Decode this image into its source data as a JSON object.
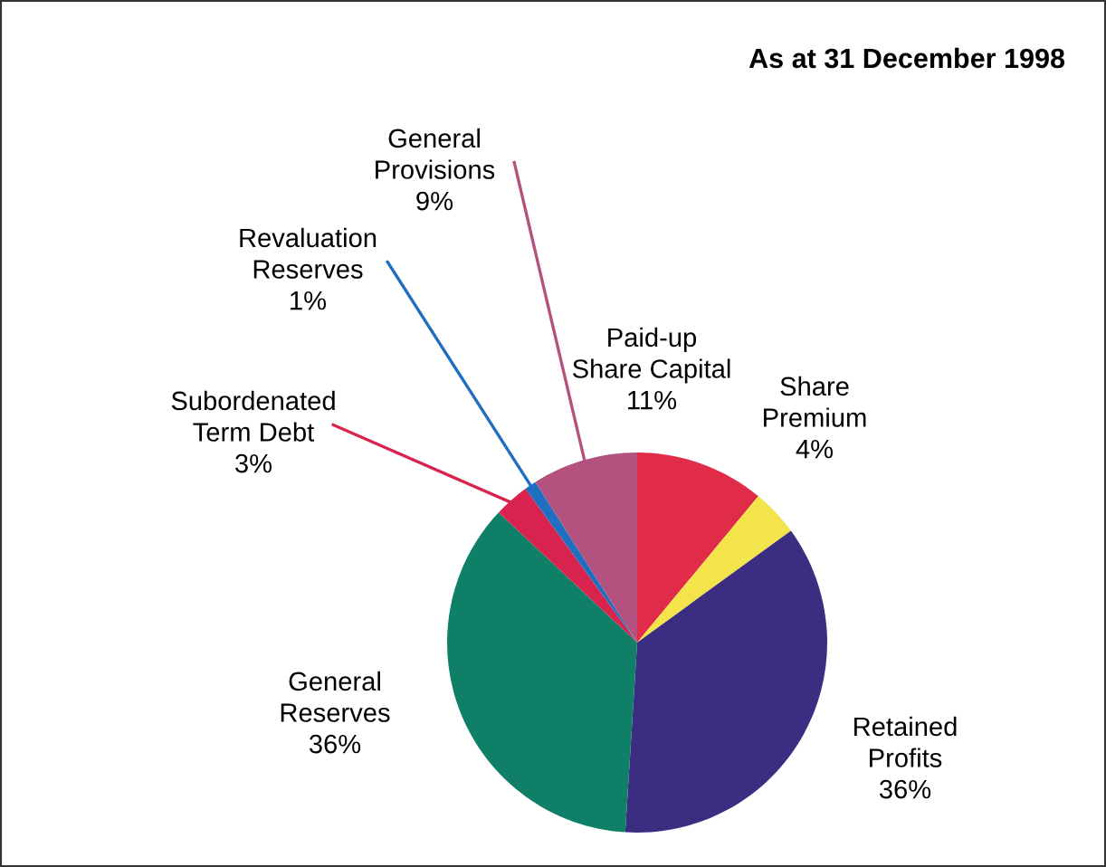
{
  "chart_data": {
    "type": "pie",
    "title": "As at 31 December 1998",
    "categories": [
      "Paid-up\nShare Capital",
      "Share\nPremium",
      "Retained\nProfits",
      "General\nReserves",
      "Subordenated\nTerm Debt",
      "Revaluation\nReserves",
      "General\nProvisions"
    ],
    "values": [
      11,
      4,
      36,
      36,
      3,
      1,
      9
    ],
    "colors": [
      "#e02c48",
      "#f2e44a",
      "#3b2d82",
      "#0f7f68",
      "#d9234f",
      "#1f6fc0",
      "#b3527f"
    ],
    "data_labels": true,
    "value_labels": [
      "11%",
      "4%",
      "36%",
      "36%",
      "3%",
      "1%",
      "9%"
    ]
  }
}
